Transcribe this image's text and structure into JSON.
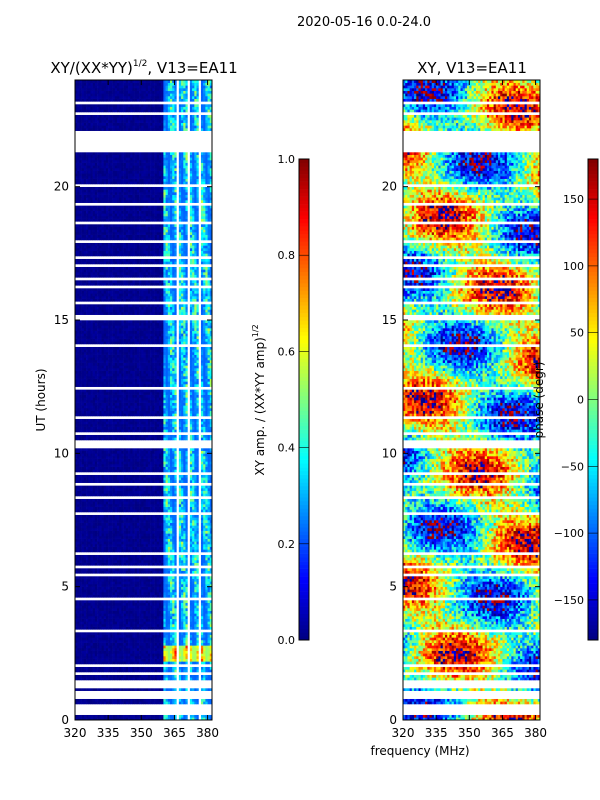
{
  "figure": {
    "suptitle": "2020-05-16 0.0-24.0",
    "shared_xlabel": "frequency (MHz)"
  },
  "colormap": "jet",
  "chart_data": [
    {
      "type": "heatmap",
      "id": "amp",
      "title": "XY/(XX*YY)",
      "title_sup": "1/2",
      "title_tail": ", V13=EA11",
      "xlabel": "",
      "ylabel": "UT (hours)",
      "xlim": [
        320,
        382
      ],
      "ylim": [
        0,
        24
      ],
      "xticks": [
        320,
        335,
        350,
        365,
        380
      ],
      "yticks": [
        0,
        5,
        10,
        15,
        20
      ],
      "active_channels_mhz": [
        360,
        382
      ],
      "background_value": 0.0,
      "colorbar": {
        "label": "XY amp. / (XX*YY amp)",
        "label_sup": "1/2",
        "range": [
          0.0,
          1.0
        ],
        "ticks": [
          "0.0",
          "0.2",
          "0.4",
          "0.6",
          "0.8",
          "1.0"
        ],
        "tick_values": [
          0.0,
          0.2,
          0.4,
          0.6,
          0.8,
          1.0
        ]
      }
    },
    {
      "type": "heatmap",
      "id": "phase",
      "title": "XY, V13=EA11",
      "xlabel": "frequency (MHz)",
      "ylabel": "",
      "xlim": [
        320,
        382
      ],
      "ylim": [
        0,
        24
      ],
      "xticks": [
        320,
        335,
        350,
        365,
        380
      ],
      "yticks": [
        0,
        5,
        10,
        15,
        20
      ],
      "colorbar": {
        "label": "phase (degr)",
        "range": [
          -180,
          180
        ],
        "ticks": [
          "−150",
          "−100",
          "−50",
          "0",
          "50",
          "100",
          "150"
        ],
        "tick_values": [
          -150,
          -100,
          -50,
          0,
          50,
          100,
          150
        ]
      }
    }
  ],
  "flagged_time_ranges_hours": [
    [
      0.2,
      0.55
    ],
    [
      0.85,
      1.05
    ],
    [
      1.25,
      1.45
    ],
    [
      1.7,
      1.8
    ],
    [
      2.0,
      2.08
    ],
    [
      3.3,
      3.38
    ],
    [
      4.55,
      4.63
    ],
    [
      5.45,
      5.55
    ],
    [
      5.75,
      5.83
    ],
    [
      6.2,
      6.26
    ],
    [
      7.7,
      7.78
    ],
    [
      8.35,
      8.45
    ],
    [
      8.85,
      8.93
    ],
    [
      9.2,
      9.28
    ],
    [
      9.55,
      9.63
    ],
    [
      10.2,
      10.5
    ],
    [
      10.7,
      10.78
    ],
    [
      11.35,
      11.43
    ],
    [
      12.4,
      12.48
    ],
    [
      13.05,
      13.13
    ],
    [
      14.05,
      14.13
    ],
    [
      15.0,
      15.2
    ],
    [
      15.6,
      15.68
    ],
    [
      16.2,
      16.28
    ],
    [
      16.55,
      16.63
    ],
    [
      17.05,
      17.13
    ],
    [
      17.35,
      17.43
    ],
    [
      17.9,
      17.98
    ],
    [
      18.6,
      18.7
    ],
    [
      19.3,
      19.38
    ],
    [
      20.05,
      20.13
    ],
    [
      21.3,
      22.05
    ],
    [
      22.7,
      22.78
    ],
    [
      23.15,
      23.23
    ],
    [
      23.55,
      23.63
    ]
  ],
  "channel_gaps_mhz": [
    [
      366.5,
      367.3
    ],
    [
      371.5,
      372.2
    ],
    [
      376.5,
      377.2
    ]
  ]
}
